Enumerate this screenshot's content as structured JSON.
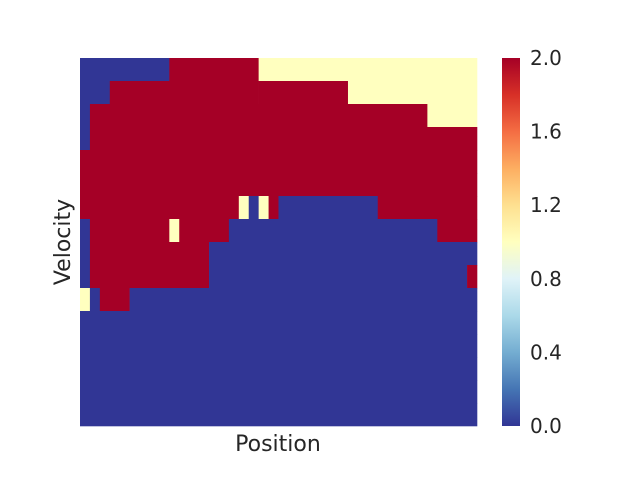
{
  "chart_data": {
    "type": "heatmap",
    "title": "",
    "xlabel": "Position",
    "ylabel": "Velocity",
    "colorbar": {
      "min": 0.0,
      "max": 2.0,
      "colormap": "RdYlBu_r",
      "ticks": [
        "0.0",
        "0.4",
        "0.8",
        "1.2",
        "1.6",
        "2.0"
      ]
    },
    "x_ticks_visible": false,
    "y_ticks_visible": false,
    "grid": false,
    "colors": {
      "0": "#313695",
      "1": "#ffffbf",
      "2": "#a50026"
    },
    "rows": 16,
    "cols": 40,
    "row_runs": [
      [
        [
          0,
          9,
          0
        ],
        [
          9,
          18,
          2
        ],
        [
          18,
          40,
          1
        ]
      ],
      [
        [
          0,
          3,
          0
        ],
        [
          3,
          18,
          2
        ],
        [
          18,
          27,
          2
        ],
        [
          27,
          40,
          1
        ]
      ],
      [
        [
          0,
          1,
          0
        ],
        [
          1,
          27,
          2
        ],
        [
          27,
          35,
          2
        ],
        [
          35,
          40,
          1
        ]
      ],
      [
        [
          0,
          1,
          0
        ],
        [
          1,
          40,
          2
        ]
      ],
      [
        [
          0,
          40,
          2
        ]
      ],
      [
        [
          0,
          16,
          2
        ],
        [
          16,
          17,
          2
        ],
        [
          17,
          20,
          2
        ],
        [
          20,
          40,
          2
        ]
      ],
      [
        [
          0,
          16,
          2
        ],
        [
          16,
          17,
          1
        ],
        [
          17,
          18,
          0
        ],
        [
          18,
          19,
          1
        ],
        [
          19,
          20,
          2
        ],
        [
          20,
          30,
          0
        ],
        [
          30,
          40,
          2
        ]
      ],
      [
        [
          0,
          1,
          0
        ],
        [
          1,
          9,
          2
        ],
        [
          9,
          10,
          1
        ],
        [
          10,
          15,
          2
        ],
        [
          15,
          20,
          0
        ],
        [
          20,
          36,
          0
        ],
        [
          36,
          40,
          2
        ]
      ],
      [
        [
          0,
          1,
          0
        ],
        [
          1,
          13,
          2
        ],
        [
          13,
          40,
          0
        ]
      ],
      [
        [
          0,
          1,
          0
        ],
        [
          1,
          13,
          2
        ],
        [
          13,
          39,
          0
        ],
        [
          39,
          40,
          2
        ]
      ],
      [
        [
          0,
          1,
          1
        ],
        [
          1,
          2,
          0
        ],
        [
          2,
          5,
          2
        ],
        [
          5,
          40,
          0
        ]
      ],
      [
        [
          0,
          40,
          0
        ]
      ],
      [
        [
          0,
          40,
          0
        ]
      ],
      [
        [
          0,
          40,
          0
        ]
      ],
      [
        [
          0,
          40,
          0
        ]
      ],
      [
        [
          0,
          40,
          0
        ]
      ]
    ]
  }
}
